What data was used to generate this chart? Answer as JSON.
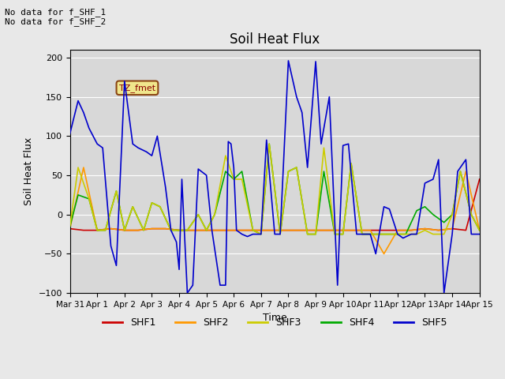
{
  "title": "Soil Heat Flux",
  "ylabel": "Soil Heat Flux",
  "xlabel": "Time",
  "ylim": [
    -100,
    210
  ],
  "yticks": [
    -100,
    -50,
    0,
    50,
    100,
    150,
    200
  ],
  "bg_color": "#e8e8e8",
  "plot_bg_color": "#d8d8d8",
  "no_data_text": "No data for f_SHF_1\nNo data for f_SHF_2",
  "tz_label": "TZ_fmet",
  "legend_entries": [
    "SHF1",
    "SHF2",
    "SHF3",
    "SHF4",
    "SHF5"
  ],
  "legend_colors": [
    "#cc0000",
    "#ff9900",
    "#cccc00",
    "#00aa00",
    "#0000cc"
  ],
  "xtick_labels": [
    "Mar 31",
    "Apr 1",
    "Apr 2",
    "Apr 3",
    "Apr 4",
    "Apr 5",
    "Apr 6",
    "Apr 7",
    "Apr 8",
    "Apr 9",
    "Apr 10",
    "Apr 11",
    "Apr 12",
    "Apr 13",
    "Apr 14",
    "Apr 15"
  ],
  "shf5_x": [
    0,
    0.3,
    0.5,
    0.7,
    1.0,
    1.2,
    1.5,
    1.7,
    2.0,
    2.3,
    2.5,
    2.8,
    3.0,
    3.2,
    3.5,
    3.7,
    3.9,
    4.0,
    4.1,
    4.3,
    4.5,
    4.7,
    5.0,
    5.2,
    5.5,
    5.7,
    5.8,
    5.9,
    6.0,
    6.1,
    6.3,
    6.5,
    6.7,
    7.0,
    7.2,
    7.5,
    7.7,
    8.0,
    8.3,
    8.5,
    8.7,
    9.0,
    9.2,
    9.5,
    9.8,
    10.0,
    10.2,
    10.5,
    10.7,
    11.0,
    11.2,
    11.5,
    11.7,
    12.0,
    12.2,
    12.5,
    12.7,
    13.0,
    13.3,
    13.5,
    13.7,
    14.0,
    14.2,
    14.5,
    14.7,
    15.0
  ],
  "shf5_y": [
    103,
    145,
    130,
    110,
    90,
    85,
    -40,
    -65,
    170,
    90,
    85,
    80,
    75,
    100,
    35,
    -20,
    -35,
    -70,
    45,
    -100,
    -90,
    58,
    50,
    -20,
    -90,
    -90,
    93,
    90,
    60,
    -20,
    -25,
    -28,
    -25,
    -25,
    95,
    -25,
    -25,
    196,
    150,
    130,
    60,
    195,
    90,
    150,
    -90,
    88,
    90,
    -25,
    -25,
    -25,
    -50,
    10,
    7,
    -25,
    -30,
    -25,
    -25,
    40,
    45,
    70,
    -100,
    -25,
    55,
    70,
    -25,
    -25
  ],
  "shf3_x": [
    0,
    0.3,
    0.7,
    1.0,
    1.3,
    1.7,
    2.0,
    2.3,
    2.7,
    3.0,
    3.3,
    3.7,
    4.0,
    4.3,
    4.7,
    5.0,
    5.3,
    5.7,
    6.0,
    6.3,
    6.7,
    7.0,
    7.3,
    7.7,
    8.0,
    8.3,
    8.7,
    9.0,
    9.3,
    9.7,
    10.0,
    10.3,
    10.7,
    11.0,
    11.3,
    11.7,
    12.0,
    12.3,
    12.7,
    13.0,
    13.3,
    13.7,
    14.0,
    14.3,
    14.7,
    15.0
  ],
  "shf3_y": [
    -15,
    60,
    20,
    -20,
    -20,
    30,
    -20,
    10,
    -20,
    15,
    10,
    -20,
    -20,
    -20,
    0,
    -20,
    0,
    75,
    45,
    45,
    -20,
    -25,
    90,
    -25,
    55,
    60,
    -25,
    -25,
    85,
    -25,
    -25,
    65,
    -25,
    -25,
    -25,
    -25,
    -25,
    -25,
    -25,
    -20,
    -25,
    -25,
    0,
    55,
    0,
    -20
  ],
  "shf4_x": [
    0,
    0.3,
    0.7,
    1.0,
    1.3,
    1.7,
    2.0,
    2.3,
    2.7,
    3.0,
    3.3,
    3.7,
    4.0,
    4.3,
    4.7,
    5.0,
    5.3,
    5.7,
    6.0,
    6.3,
    6.7,
    7.0,
    7.3,
    7.7,
    8.0,
    8.3,
    8.7,
    9.0,
    9.3,
    9.7,
    10.0,
    10.3,
    10.7,
    11.0,
    11.3,
    11.7,
    12.0,
    12.3,
    12.7,
    13.0,
    13.3,
    13.7,
    14.0,
    14.3,
    14.7,
    15.0
  ],
  "shf4_y": [
    -15,
    25,
    20,
    -20,
    -20,
    30,
    -20,
    10,
    -20,
    15,
    10,
    -20,
    -20,
    -20,
    0,
    -20,
    0,
    55,
    45,
    55,
    -20,
    -25,
    90,
    -25,
    55,
    60,
    -25,
    -25,
    55,
    -25,
    -25,
    65,
    -25,
    -25,
    -25,
    -25,
    -25,
    -25,
    5,
    10,
    0,
    -10,
    0,
    55,
    0,
    -20
  ],
  "shf1_x": [
    0,
    0.5,
    1.0,
    1.5,
    2.0,
    2.5,
    3.0,
    3.5,
    4.0,
    4.5,
    5.0,
    5.5,
    6.0,
    6.5,
    7.0,
    7.5,
    8.0,
    8.5,
    9.0,
    9.5,
    10.0,
    10.5,
    11.0,
    11.5,
    12.0,
    12.5,
    13.0,
    13.5,
    14.0,
    14.5,
    15.0
  ],
  "shf1_y": [
    -18,
    -20,
    -20,
    -18,
    -20,
    -20,
    -18,
    -18,
    -20,
    -20,
    -20,
    -20,
    -20,
    -20,
    -20,
    -20,
    -20,
    -20,
    -20,
    -20,
    -20,
    -20,
    -20,
    -20,
    -20,
    -20,
    -18,
    -20,
    -18,
    -20,
    45
  ],
  "shf2_x": [
    0,
    0.5,
    1.0,
    1.5,
    2.0,
    2.5,
    3.0,
    3.5,
    4.0,
    4.5,
    5.0,
    5.5,
    6.0,
    6.5,
    7.0,
    7.5,
    8.0,
    8.5,
    9.0,
    9.5,
    10.0,
    10.5,
    11.0,
    11.5,
    12.0,
    12.5,
    13.0,
    13.5,
    14.0,
    14.5,
    15.0
  ],
  "shf2_y": [
    -18,
    60,
    -20,
    -18,
    -20,
    -20,
    -18,
    -18,
    -20,
    -20,
    -20,
    -20,
    -20,
    -20,
    -20,
    -20,
    -20,
    -20,
    -20,
    -20,
    -20,
    -20,
    -20,
    -50,
    -20,
    -20,
    -18,
    -20,
    -18,
    55,
    -20
  ]
}
